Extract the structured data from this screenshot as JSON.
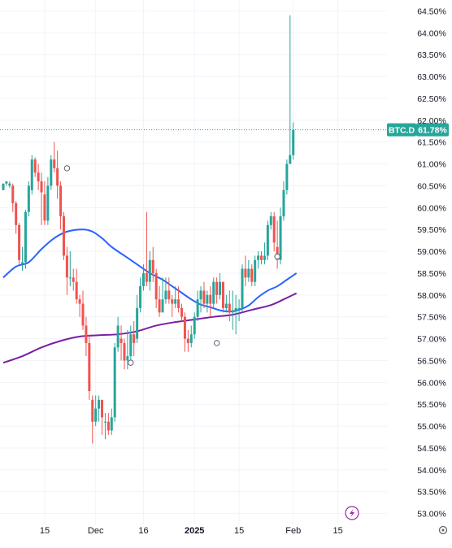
{
  "colors": {
    "up": "#26a69a",
    "down": "#ef5350",
    "ma_fast": "#2962ff",
    "ma_slow": "#7b1fa2",
    "price_tag": "#26a69a",
    "grid": "#f0f3fa",
    "price_line": "#26a69a"
  },
  "icons": {
    "flash": "flash-icon",
    "settings": "settings-icon"
  },
  "chart_data": {
    "type": "candlestick",
    "symbol_tag": "BTC.D",
    "last_value_label": "61.78%",
    "last_value": 61.78,
    "ylim": [
      52.75,
      64.75
    ],
    "yticks": [
      {
        "v": 64.5,
        "label": "64.50%"
      },
      {
        "v": 64.0,
        "label": "64.00%"
      },
      {
        "v": 63.5,
        "label": "63.50%"
      },
      {
        "v": 63.0,
        "label": "63.00%"
      },
      {
        "v": 62.5,
        "label": "62.50%"
      },
      {
        "v": 62.0,
        "label": "62.00%"
      },
      {
        "v": 61.5,
        "label": "61.50%"
      },
      {
        "v": 61.0,
        "label": "61.00%"
      },
      {
        "v": 60.5,
        "label": "60.50%"
      },
      {
        "v": 60.0,
        "label": "60.00%"
      },
      {
        "v": 59.5,
        "label": "59.50%"
      },
      {
        "v": 59.0,
        "label": "59.00%"
      },
      {
        "v": 58.5,
        "label": "58.50%"
      },
      {
        "v": 58.0,
        "label": "58.00%"
      },
      {
        "v": 57.5,
        "label": "57.50%"
      },
      {
        "v": 57.0,
        "label": "57.00%"
      },
      {
        "v": 56.5,
        "label": "56.50%"
      },
      {
        "v": 56.0,
        "label": "56.00%"
      },
      {
        "v": 55.5,
        "label": "55.50%"
      },
      {
        "v": 55.0,
        "label": "55.00%"
      },
      {
        "v": 54.5,
        "label": "54.50%"
      },
      {
        "v": 54.0,
        "label": "54.00%"
      },
      {
        "v": 53.5,
        "label": "53.50%"
      },
      {
        "v": 53.0,
        "label": "53.00%"
      }
    ],
    "xticks": [
      {
        "i": 13,
        "label": "15",
        "bold": false
      },
      {
        "i": 29,
        "label": "Dec",
        "bold": false
      },
      {
        "i": 44,
        "label": "16",
        "bold": false
      },
      {
        "i": 60,
        "label": "2025",
        "bold": true
      },
      {
        "i": 74,
        "label": "15",
        "bold": false
      },
      {
        "i": 91,
        "label": "Feb",
        "bold": false
      },
      {
        "i": 105,
        "label": "15",
        "bold": false
      }
    ],
    "candles": [
      [
        60.4,
        60.55,
        60.55,
        60.4
      ],
      [
        60.55,
        60.6,
        60.6,
        60.5
      ],
      [
        60.5,
        60.55,
        60.6,
        60.45
      ],
      [
        60.5,
        60.1,
        60.55,
        59.9
      ],
      [
        60.1,
        59.6,
        60.15,
        59.4
      ],
      [
        59.6,
        58.8,
        59.65,
        58.7
      ],
      [
        58.7,
        58.75,
        59.1,
        58.55
      ],
      [
        58.75,
        59.9,
        59.95,
        58.6
      ],
      [
        59.9,
        60.5,
        60.6,
        59.8
      ],
      [
        60.4,
        61.1,
        61.2,
        60.3
      ],
      [
        61.1,
        60.8,
        61.15,
        60.7
      ],
      [
        60.8,
        60.6,
        61.0,
        60.4
      ],
      [
        60.6,
        60.35,
        60.8,
        59.6
      ],
      [
        60.3,
        59.7,
        60.6,
        59.6
      ],
      [
        59.7,
        60.5,
        60.7,
        59.6
      ],
      [
        60.5,
        61.1,
        61.2,
        60.4
      ],
      [
        61.1,
        60.9,
        61.5,
        60.8
      ],
      [
        60.9,
        60.5,
        61.3,
        60.2
      ],
      [
        60.5,
        59.8,
        60.6,
        59.5
      ],
      [
        59.8,
        58.9,
        59.9,
        58.8
      ],
      [
        58.9,
        58.4,
        59.1,
        58.0
      ],
      [
        58.4,
        58.4,
        59.0,
        58.2
      ],
      [
        58.4,
        58.3,
        58.6,
        58.1
      ],
      [
        58.3,
        57.9,
        58.6,
        57.8
      ],
      [
        57.9,
        57.8,
        58.0,
        57.5
      ],
      [
        57.8,
        57.3,
        58.1,
        57.2
      ],
      [
        57.3,
        56.9,
        57.5,
        56.6
      ],
      [
        56.9,
        55.8,
        57.1,
        55.6
      ],
      [
        55.6,
        55.1,
        55.7,
        54.6
      ],
      [
        55.1,
        55.4,
        55.7,
        55.0
      ],
      [
        55.4,
        55.6,
        55.7,
        55.1
      ],
      [
        55.6,
        55.2,
        55.6,
        54.8
      ],
      [
        55.1,
        55.1,
        55.3,
        54.7
      ],
      [
        55.1,
        54.9,
        55.3,
        54.8
      ],
      [
        54.9,
        55.2,
        55.4,
        54.8
      ],
      [
        55.2,
        56.8,
        56.9,
        55.1
      ],
      [
        56.8,
        57.3,
        57.5,
        56.7
      ],
      [
        57.0,
        56.9,
        57.3,
        56.5
      ],
      [
        56.9,
        56.5,
        57.0,
        56.3
      ],
      [
        56.5,
        56.6,
        57.2,
        56.3
      ],
      [
        56.6,
        57.1,
        57.3,
        56.5
      ],
      [
        57.1,
        56.9,
        57.4,
        56.6
      ],
      [
        57.0,
        57.7,
        58.0,
        56.9
      ],
      [
        57.7,
        58.2,
        58.4,
        57.6
      ],
      [
        58.2,
        58.5,
        58.7,
        58.1
      ],
      [
        58.5,
        58.3,
        59.9,
        58.2
      ],
      [
        58.3,
        58.8,
        59.0,
        58.1
      ],
      [
        58.8,
        58.5,
        59.1,
        58.3
      ],
      [
        58.5,
        57.9,
        58.6,
        57.7
      ],
      [
        57.9,
        57.6,
        58.2,
        57.5
      ],
      [
        57.6,
        57.9,
        58.4,
        57.6
      ],
      [
        57.9,
        58.1,
        58.4,
        57.8
      ],
      [
        58.1,
        57.9,
        58.4,
        57.8
      ],
      [
        57.9,
        57.8,
        58.0,
        57.5
      ],
      [
        57.8,
        57.9,
        58.2,
        57.7
      ],
      [
        57.9,
        57.7,
        58.2,
        57.6
      ],
      [
        57.7,
        57.5,
        57.8,
        57.4
      ],
      [
        57.5,
        57.0,
        57.6,
        56.7
      ],
      [
        57.0,
        56.9,
        57.2,
        56.7
      ],
      [
        56.9,
        57.1,
        57.3,
        56.8
      ],
      [
        57.1,
        57.5,
        57.6,
        57.0
      ],
      [
        57.5,
        57.9,
        58.1,
        57.4
      ],
      [
        57.9,
        58.1,
        58.2,
        57.6
      ],
      [
        58.1,
        57.8,
        58.3,
        57.7
      ],
      [
        57.8,
        58.0,
        58.1,
        57.6
      ],
      [
        58.0,
        57.8,
        58.2,
        57.5
      ],
      [
        57.8,
        58.3,
        58.4,
        57.7
      ],
      [
        58.3,
        58.0,
        58.4,
        57.8
      ],
      [
        58.0,
        58.3,
        58.5,
        57.9
      ],
      [
        58.3,
        57.7,
        58.3,
        57.6
      ],
      [
        57.7,
        57.8,
        58.0,
        57.6
      ],
      [
        57.8,
        57.6,
        58.1,
        57.4
      ],
      [
        57.6,
        57.65,
        58.1,
        57.2
      ],
      [
        57.65,
        57.7,
        58.0,
        57.1
      ],
      [
        57.7,
        57.7,
        57.9,
        57.4
      ],
      [
        57.7,
        58.6,
        58.7,
        57.6
      ],
      [
        58.6,
        58.4,
        58.9,
        58.2
      ],
      [
        58.4,
        58.6,
        58.8,
        58.3
      ],
      [
        58.6,
        58.3,
        58.7,
        58.2
      ],
      [
        58.3,
        58.8,
        58.9,
        58.2
      ],
      [
        58.8,
        58.9,
        59.0,
        58.6
      ],
      [
        58.9,
        58.8,
        59.0,
        58.7
      ],
      [
        58.8,
        58.9,
        59.2,
        58.7
      ],
      [
        58.9,
        59.6,
        59.7,
        58.8
      ],
      [
        59.6,
        59.8,
        59.9,
        59.5
      ],
      [
        59.8,
        59.2,
        59.9,
        59.0
      ],
      [
        59.1,
        58.8,
        59.7,
        58.6
      ],
      [
        58.8,
        59.8,
        60.0,
        58.7
      ],
      [
        59.8,
        60.4,
        60.6,
        59.7
      ],
      [
        60.4,
        61.0,
        61.1,
        60.3
      ],
      [
        61.0,
        61.2,
        64.4,
        61.0
      ],
      [
        61.2,
        61.78,
        61.95,
        61.1
      ]
    ],
    "ma_fast": [
      [
        0,
        58.4
      ],
      [
        4,
        58.65
      ],
      [
        8,
        58.75
      ],
      [
        12,
        59.05
      ],
      [
        16,
        59.3
      ],
      [
        20,
        59.45
      ],
      [
        25,
        59.5
      ],
      [
        28,
        59.45
      ],
      [
        31,
        59.3
      ],
      [
        34,
        59.1
      ],
      [
        38,
        58.9
      ],
      [
        42,
        58.7
      ],
      [
        46,
        58.5
      ],
      [
        50,
        58.35
      ],
      [
        53,
        58.2
      ],
      [
        56,
        58.05
      ],
      [
        59,
        57.9
      ],
      [
        62,
        57.78
      ],
      [
        65,
        57.72
      ],
      [
        68,
        57.65
      ],
      [
        71,
        57.62
      ],
      [
        74,
        57.66
      ],
      [
        77,
        57.76
      ],
      [
        80,
        57.95
      ],
      [
        83,
        58.1
      ],
      [
        86,
        58.2
      ],
      [
        89,
        58.35
      ],
      [
        92,
        58.5
      ]
    ],
    "ma_slow": [
      [
        0,
        56.45
      ],
      [
        6,
        56.6
      ],
      [
        12,
        56.8
      ],
      [
        18,
        56.95
      ],
      [
        24,
        57.05
      ],
      [
        30,
        57.08
      ],
      [
        36,
        57.1
      ],
      [
        42,
        57.17
      ],
      [
        48,
        57.3
      ],
      [
        54,
        57.38
      ],
      [
        60,
        57.44
      ],
      [
        66,
        57.5
      ],
      [
        72,
        57.55
      ],
      [
        78,
        57.66
      ],
      [
        84,
        57.77
      ],
      [
        88,
        57.9
      ],
      [
        92,
        58.04
      ]
    ],
    "markers": [
      {
        "i": 20,
        "v": 60.9
      },
      {
        "i": 40,
        "v": 56.45
      },
      {
        "i": 67,
        "v": 56.9
      },
      {
        "i": 86,
        "v": 58.88
      }
    ]
  }
}
